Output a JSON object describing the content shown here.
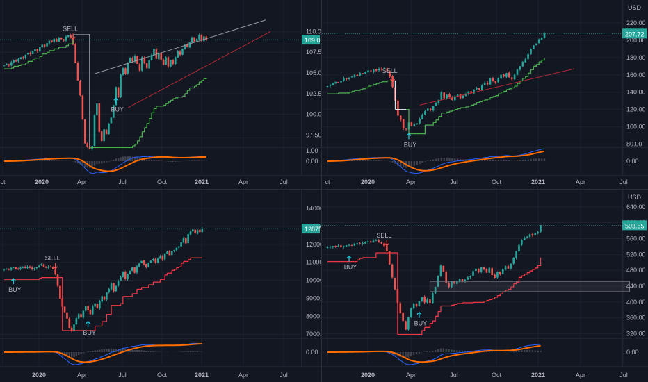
{
  "colors": {
    "background": "#131722",
    "grid": "#1e222d",
    "text": "#b2b5be",
    "up": "#26a69a",
    "down": "#ef5350",
    "stop_green": "#4caf50",
    "stop_red": "#f23645",
    "macd": "#2962ff",
    "signal": "#ff6d00",
    "trend_upper": "#9598a1",
    "trend_lower": "#b22833",
    "price_label": "#26a69a"
  },
  "chart_data": [
    {
      "type": "candlestick",
      "id": "p1",
      "currency": "",
      "axis_ticks": [
        "110.00",
        "107.50",
        "105.00",
        "102.50",
        "100.00",
        "97.50"
      ],
      "osc_ticks": [
        "1.00",
        "0.00"
      ],
      "ylim": [
        96.2,
        112.3
      ],
      "xaxis": [
        "ct",
        "2020",
        "Apr",
        "Jul",
        "Oct",
        "2021",
        "Apr",
        "Jul"
      ],
      "last_price": "109.02",
      "annotations": [
        {
          "text": "SELL",
          "kind": "sell"
        },
        {
          "text": "BUY",
          "kind": "buy"
        }
      ],
      "close": [
        105.9,
        106.1,
        105.9,
        106.3,
        106.5,
        106.4,
        106.7,
        106.9,
        106.8,
        107.2,
        107.4,
        107.3,
        107.6,
        107.9,
        107.6,
        108.1,
        108.4,
        108.2,
        108.6,
        108.9,
        108.7,
        109.1,
        108.8,
        109.3,
        109.1,
        108.9,
        109.4,
        109.6,
        109.2,
        108.4,
        106.2,
        104.1,
        102.3,
        99.4,
        96.5,
        96.1,
        95.8,
        96.2,
        99.9,
        101.3,
        97.9,
        96.8,
        98.2,
        97.6,
        98.9,
        99.6,
        101.1,
        103.3,
        102.1,
        104.8,
        105.6,
        104.9,
        106.2,
        106.8,
        106.4,
        107.1,
        106.1,
        105.3,
        106.9,
        106.2,
        105.6,
        106.5,
        107.2,
        107.9,
        106.7,
        107.4,
        106.6,
        106.0,
        106.9,
        105.8,
        106.6,
        106.1,
        106.9,
        107.6,
        107.2,
        107.9,
        108.4,
        108.1,
        108.7,
        109.3,
        108.8,
        109.1,
        109.6,
        108.9,
        109.4,
        109.02
      ],
      "stop": [
        105.5,
        105.5,
        105.5,
        105.6,
        105.8,
        105.8,
        105.9,
        106.0,
        106.0,
        106.2,
        106.4,
        106.4,
        106.6,
        106.8,
        106.8,
        107.0,
        107.3,
        107.3,
        107.5,
        107.7,
        107.7,
        107.9,
        107.9,
        108.1,
        108.1,
        108.1,
        108.3,
        108.5,
        108.5,
        109.6,
        109.6,
        109.6,
        109.6,
        109.6,
        109.6,
        109.6,
        96.0,
        96.0,
        96.0,
        96.0,
        96.0,
        96.0,
        96.0,
        96.0,
        96.0,
        96.0,
        96.0,
        96.0,
        96.0,
        96.0,
        96.0,
        96.0,
        96.0,
        96.0,
        96.2,
        96.4,
        96.8,
        97.3,
        97.9,
        98.4,
        98.9,
        99.5,
        100.2,
        100.7,
        101.0,
        101.0,
        101.0,
        101.1,
        101.3,
        101.5,
        101.7,
        101.9,
        102.0,
        102.1,
        102.1,
        102.2,
        102.5,
        102.9,
        103.2,
        103.2,
        103.4,
        103.6,
        103.9,
        104.1,
        104.3,
        104.4
      ],
      "stop_flip": 36,
      "sell_index": 29,
      "buy_index": 47,
      "trendlines": [
        [
          38,
          104.9,
          110,
          111.4
        ],
        [
          52,
          100.8,
          112,
          110.0
        ]
      ],
      "has_zone": false
    },
    {
      "type": "candlestick",
      "id": "p2",
      "currency": "USD",
      "axis_ticks": [
        "220.00",
        "200.00",
        "180.00",
        "160.00",
        "140.00",
        "120.00",
        "100.00",
        "80.00"
      ],
      "osc_ticks": [
        "0.00"
      ],
      "ylim": [
        78,
        232
      ],
      "xaxis": [
        "ct",
        "2020",
        "Apr",
        "Jul",
        "Oct",
        "2021",
        "Apr",
        "Jul"
      ],
      "last_price": "207.72",
      "annotations": [
        {
          "text": "SELL",
          "kind": "sell"
        },
        {
          "text": "BUY",
          "kind": "buy"
        }
      ],
      "close": [
        147,
        148,
        150,
        152,
        151,
        153,
        156,
        155,
        157,
        158,
        160,
        159,
        162,
        161,
        163,
        165,
        164,
        166,
        165,
        167,
        166,
        168,
        164,
        158,
        146,
        130,
        113,
        108,
        98,
        97,
        105,
        101,
        103,
        104,
        109,
        114,
        118,
        121,
        119,
        124,
        127,
        131,
        140,
        133,
        137,
        134,
        131,
        135,
        137,
        133,
        136,
        138,
        141,
        139,
        143,
        145,
        143,
        148,
        151,
        149,
        156,
        153,
        151,
        156,
        160,
        158,
        162,
        157,
        155,
        160,
        166,
        170,
        175,
        178,
        184,
        190,
        194,
        196,
        201,
        203,
        207.72
      ],
      "stop": [
        138,
        138,
        138,
        138,
        139,
        139,
        139,
        139,
        140,
        141,
        142,
        142,
        143,
        144,
        145,
        147,
        148,
        149,
        150,
        151,
        152,
        152,
        153,
        153,
        153,
        120,
        120,
        120,
        120,
        120,
        92,
        92,
        92,
        92,
        92,
        92,
        102,
        102,
        102,
        105,
        108,
        112,
        116,
        116,
        117,
        118,
        119,
        120,
        121,
        122,
        122,
        123,
        124,
        125,
        126,
        128,
        129,
        130,
        131,
        132,
        134,
        135,
        136,
        138,
        140,
        141,
        143,
        144,
        145,
        147,
        150,
        153,
        156,
        158,
        162,
        166,
        170,
        172,
        175,
        177,
        179
      ],
      "stop_flip": 29,
      "sell_index": 24,
      "buy_index": 30,
      "trendlines": [
        [
          34,
          125,
          91,
          167
        ]
      ],
      "has_zone": false
    },
    {
      "type": "candlestick",
      "id": "p3",
      "currency": "",
      "axis_ticks": [
        "14000.00",
        "13000.00",
        "12000.00",
        "11000.00",
        "10000.00",
        "9000.00",
        "8000.00",
        "7000.00"
      ],
      "osc_ticks": [
        "0.00"
      ],
      "ylim": [
        6850,
        14350
      ],
      "xaxis": [
        "",
        "2020",
        "Apr",
        "Jul",
        "Oct",
        "2021",
        "Apr",
        "Jul"
      ],
      "last_price": "12875.66",
      "annotations": [
        {
          "text": "BUY",
          "kind": "buy"
        },
        {
          "text": "SELL",
          "kind": "sell"
        },
        {
          "text": "BUY",
          "kind": "buy"
        }
      ],
      "close": [
        10620,
        10650,
        10580,
        10690,
        10710,
        10640,
        10600,
        10690,
        10720,
        10680,
        10750,
        10690,
        10620,
        10660,
        10720,
        10810,
        10890,
        10750,
        10690,
        10760,
        10720,
        10600,
        10340,
        9690,
        8980,
        8530,
        8220,
        7860,
        7350,
        7180,
        7540,
        7890,
        8120,
        7940,
        8290,
        8560,
        8320,
        8110,
        8540,
        8710,
        8430,
        8830,
        9110,
        8920,
        9320,
        9510,
        9820,
        9390,
        9680,
        9960,
        10180,
        10470,
        10080,
        10340,
        10520,
        10710,
        10420,
        10780,
        10930,
        11080,
        10890,
        10740,
        10980,
        11090,
        11180,
        10990,
        11210,
        11320,
        11150,
        11480,
        11590,
        11390,
        11620,
        11680,
        11800,
        11880,
        12110,
        12340,
        12050,
        12560,
        12710,
        12830,
        12610,
        12790,
        12680,
        12875.66
      ],
      "stop": [
        10050,
        10050,
        10050,
        10050,
        10050,
        10050,
        10050,
        10050,
        10050,
        10050,
        10050,
        10050,
        10050,
        10050,
        10050,
        10100,
        10150,
        10150,
        10150,
        10150,
        10150,
        10150,
        10150,
        10150,
        10150,
        7200,
        7200,
        7200,
        7200,
        7200,
        7200,
        7200,
        7200,
        7200,
        7200,
        7200,
        7200,
        7200,
        7200,
        7450,
        7450,
        7450,
        7700,
        7700,
        8100,
        8100,
        8600,
        8600,
        8600,
        8600,
        8700,
        9100,
        9100,
        9100,
        9100,
        9250,
        9250,
        9500,
        9500,
        9600,
        9600,
        9600,
        9750,
        9750,
        9900,
        9900,
        9900,
        10050,
        10050,
        10300,
        10400,
        10400,
        10550,
        10600,
        10700,
        10750,
        10950,
        11050,
        11050,
        11150,
        11250,
        11250,
        11250,
        11250,
        11250,
        11250
      ],
      "stop_flip": 25,
      "sell_index": 22,
      "buy_index": 36,
      "buy0_index": 4,
      "trendlines": [],
      "has_zone": false
    },
    {
      "type": "candlestick",
      "id": "p4",
      "currency": "USD",
      "axis_ticks": [
        "640.00",
        "600.00",
        "560.00",
        "520.00",
        "480.00",
        "440.00",
        "400.00",
        "360.00",
        "320.00"
      ],
      "osc_ticks": [
        "0.00"
      ],
      "ylim": [
        312,
        652
      ],
      "xaxis": [
        "",
        "2020",
        "Apr",
        "Jul",
        "Oct",
        "2021",
        "Apr",
        "Jul"
      ],
      "last_price": "593.55",
      "annotations": [
        {
          "text": "BUY",
          "kind": "buy"
        },
        {
          "text": "SELL",
          "kind": "sell"
        },
        {
          "text": "BUY",
          "kind": "buy"
        }
      ],
      "close": [
        538,
        539,
        541,
        540,
        542,
        538,
        541,
        543,
        544,
        543,
        546,
        548,
        547,
        549,
        551,
        553,
        552,
        555,
        556,
        551,
        548,
        541,
        528,
        495,
        462,
        432,
        398,
        372,
        352,
        330,
        362,
        384,
        396,
        390,
        402,
        412,
        399,
        406,
        398,
        422,
        438,
        466,
        492,
        476,
        448,
        438,
        452,
        446,
        451,
        458,
        452,
        456,
        462,
        465,
        478,
        484,
        476,
        488,
        482,
        474,
        486,
        468,
        461,
        476,
        470,
        482,
        490,
        484,
        496,
        512,
        528,
        544,
        556,
        562,
        565,
        571,
        568,
        573,
        577,
        593.55
      ],
      "stop": [
        502,
        502,
        502,
        502,
        502,
        502,
        502,
        502,
        502,
        502,
        502,
        506,
        510,
        512,
        512,
        512,
        512,
        512,
        524,
        524,
        524,
        524,
        524,
        524,
        524,
        524,
        318,
        318,
        318,
        318,
        318,
        318,
        318,
        318,
        318,
        328,
        336,
        336,
        346,
        352,
        364,
        376,
        390,
        390,
        390,
        390,
        392,
        394,
        396,
        396,
        398,
        398,
        398,
        398,
        399,
        399,
        399,
        399,
        402,
        404,
        406,
        408,
        412,
        416,
        420,
        426,
        430,
        432,
        438,
        446,
        450,
        462,
        466,
        470,
        474,
        478,
        482,
        486,
        492,
        512
      ],
      "stop_flip": 26,
      "sell_index": 22,
      "buy_index": 34,
      "buy0_index": 8,
      "trendlines": [],
      "has_zone": true,
      "zone": [
        38,
        112,
        452,
        426
      ]
    }
  ]
}
